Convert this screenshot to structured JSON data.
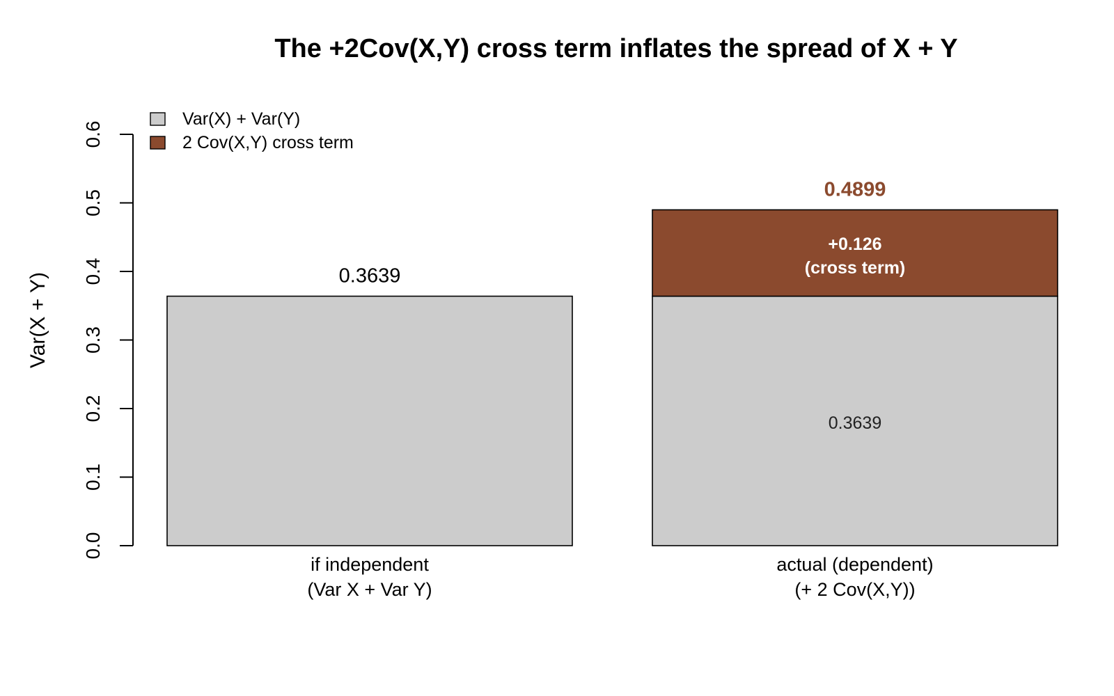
{
  "chart_data": {
    "type": "bar",
    "stacked": true,
    "title": "The +2Cov(X,Y) cross term inflates the spread of X + Y",
    "xlabel": "",
    "ylabel": "Var(X + Y)",
    "ylim": [
      0,
      0.6
    ],
    "yticks": [
      "0.0",
      "0.1",
      "0.2",
      "0.3",
      "0.4",
      "0.5",
      "0.6"
    ],
    "categories": [
      [
        "if independent",
        "(Var X + Var Y)"
      ],
      [
        "actual (dependent)",
        "(+ 2 Cov(X,Y))"
      ]
    ],
    "series": [
      {
        "name": "Var(X) + Var(Y)",
        "color": "#cccccc",
        "values": [
          0.3639,
          0.3639
        ]
      },
      {
        "name": "2 Cov(X,Y) cross term",
        "color": "#8b4a2e",
        "values": [
          0,
          0.126
        ]
      }
    ],
    "totals": [
      0.3639,
      0.4899
    ],
    "top_labels": [
      "0.3639",
      "0.4899"
    ],
    "inner_labels": {
      "base": "0.3639",
      "cross": [
        "+0.126",
        "(cross term)"
      ]
    },
    "legend_position": "top-left",
    "grid": false,
    "label_color_total": "#8b4a2e",
    "border_color": "#000000"
  }
}
